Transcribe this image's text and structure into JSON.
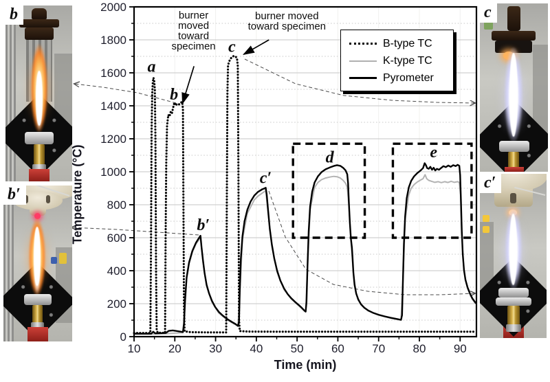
{
  "figure": {
    "photos": [
      {
        "id": "b",
        "label": "b",
        "flame": "orange",
        "specimen_holder": false,
        "position": "top-left"
      },
      {
        "id": "b-prime",
        "label": "b′",
        "flame": "orange",
        "specimen_holder": true,
        "position": "bottom-left"
      },
      {
        "id": "c",
        "label": "c",
        "flame": "white",
        "specimen_holder": false,
        "position": "top-right"
      },
      {
        "id": "c-prime",
        "label": "c′",
        "flame": "white",
        "specimen_holder": true,
        "position": "bottom-right"
      }
    ]
  },
  "chart_data": {
    "type": "line",
    "title": "",
    "xlabel": "Time (min)",
    "ylabel": "Temperature (°C)",
    "xlim": [
      10,
      94
    ],
    "ylim": [
      0,
      2000
    ],
    "x_ticks": [
      10,
      20,
      30,
      40,
      50,
      60,
      70,
      80,
      90
    ],
    "y_ticks": [
      0,
      200,
      400,
      600,
      800,
      1000,
      1200,
      1400,
      1600,
      1800,
      2000
    ],
    "grid": {
      "major_solid": true,
      "minor_dotted": true
    },
    "legend": {
      "position": "upper-right",
      "entries": [
        {
          "label": "B-type TC",
          "line_style": "dotted",
          "color": "#000000"
        },
        {
          "label": "K-type TC",
          "line_style": "solid",
          "color": "#b0b0b0"
        },
        {
          "label": "Pyrometer",
          "line_style": "solid",
          "color": "#000000"
        }
      ]
    },
    "series": [
      {
        "name": "K-type TC",
        "style": "solid",
        "color": "#b3b3b3",
        "points": [
          [
            10,
            16
          ],
          [
            14.2,
            16
          ],
          [
            17.8,
            18
          ],
          [
            22.0,
            24
          ],
          [
            22.3,
            75
          ],
          [
            22.9,
            350
          ],
          [
            23.5,
            440
          ],
          [
            24.3,
            512
          ],
          [
            25.2,
            562
          ],
          [
            26.3,
            600
          ],
          [
            26.9,
            452
          ],
          [
            27.8,
            305
          ],
          [
            29.1,
            210
          ],
          [
            30.8,
            143
          ],
          [
            32.8,
            102
          ],
          [
            34.8,
            74
          ],
          [
            35.5,
            62
          ],
          [
            35.95,
            265
          ],
          [
            36.6,
            590
          ],
          [
            37.8,
            748
          ],
          [
            39.5,
            830
          ],
          [
            40.4,
            852
          ],
          [
            41.4,
            870
          ],
          [
            42.3,
            885
          ],
          [
            42.9,
            745
          ],
          [
            43.8,
            548
          ],
          [
            45.1,
            390
          ],
          [
            46.8,
            285
          ],
          [
            48.6,
            228
          ],
          [
            50.3,
            190
          ],
          [
            51.8,
            155
          ],
          [
            52.1,
            150
          ],
          [
            52.55,
            420
          ],
          [
            53.2,
            770
          ],
          [
            54.3,
            905
          ],
          [
            55.1,
            935
          ],
          [
            56.0,
            952
          ],
          [
            57.0,
            962
          ],
          [
            58.0,
            968
          ],
          [
            59.0,
            972
          ],
          [
            59.8,
            970
          ],
          [
            60.6,
            962
          ],
          [
            61.3,
            948
          ],
          [
            61.9,
            930
          ],
          [
            62.3,
            905
          ],
          [
            62.7,
            800
          ],
          [
            63.2,
            585
          ],
          [
            63.8,
            385
          ],
          [
            64.5,
            258
          ],
          [
            65.7,
            194
          ],
          [
            67.5,
            156
          ],
          [
            70,
            131
          ],
          [
            73,
            112
          ],
          [
            75.5,
            100
          ],
          [
            75.95,
            320
          ],
          [
            76.5,
            710
          ],
          [
            77.4,
            860
          ],
          [
            78.0,
            900
          ],
          [
            78.7,
            922
          ],
          [
            79.5,
            938
          ],
          [
            80.3,
            950
          ],
          [
            80.9,
            958
          ],
          [
            81.4,
            982
          ],
          [
            81.8,
            958
          ],
          [
            82.3,
            948
          ],
          [
            83.0,
            942
          ],
          [
            83.8,
            936
          ],
          [
            84.6,
            940
          ],
          [
            85.4,
            934
          ],
          [
            86.2,
            940
          ],
          [
            87.0,
            935
          ],
          [
            87.8,
            942
          ],
          [
            88.6,
            936
          ],
          [
            89.4,
            940
          ],
          [
            89.8,
            934
          ],
          [
            90.1,
            860
          ],
          [
            90.4,
            620
          ],
          [
            90.95,
            395
          ],
          [
            91.8,
            292
          ],
          [
            93.0,
            226
          ],
          [
            93.8,
            200
          ]
        ]
      },
      {
        "name": "Pyrometer",
        "style": "solid",
        "color": "#000000",
        "points": [
          [
            10,
            18
          ],
          [
            12,
            18
          ],
          [
            14.2,
            18
          ],
          [
            14.7,
            30
          ],
          [
            15.2,
            20
          ],
          [
            17.8,
            22
          ],
          [
            18.5,
            35
          ],
          [
            19.5,
            38
          ],
          [
            21.0,
            32
          ],
          [
            22.0,
            28
          ],
          [
            22.25,
            80
          ],
          [
            22.5,
            220
          ],
          [
            22.9,
            360
          ],
          [
            23.5,
            450
          ],
          [
            24.3,
            520
          ],
          [
            25.2,
            570
          ],
          [
            25.9,
            598
          ],
          [
            26.3,
            612
          ],
          [
            26.55,
            545
          ],
          [
            26.9,
            465
          ],
          [
            27.3,
            385
          ],
          [
            27.8,
            315
          ],
          [
            28.4,
            262
          ],
          [
            29.1,
            218
          ],
          [
            29.9,
            180
          ],
          [
            30.8,
            150
          ],
          [
            31.8,
            127
          ],
          [
            32.8,
            108
          ],
          [
            33.8,
            92
          ],
          [
            34.8,
            78
          ],
          [
            35.5,
            66
          ],
          [
            35.75,
            95
          ],
          [
            35.95,
            280
          ],
          [
            36.2,
            470
          ],
          [
            36.6,
            610
          ],
          [
            37.1,
            700
          ],
          [
            37.8,
            770
          ],
          [
            38.6,
            820
          ],
          [
            39.5,
            856
          ],
          [
            40.4,
            878
          ],
          [
            41.4,
            893
          ],
          [
            42.3,
            903
          ],
          [
            42.55,
            860
          ],
          [
            42.9,
            760
          ],
          [
            43.3,
            655
          ],
          [
            43.8,
            560
          ],
          [
            44.4,
            475
          ],
          [
            45.1,
            400
          ],
          [
            45.9,
            340
          ],
          [
            46.8,
            292
          ],
          [
            47.7,
            258
          ],
          [
            48.6,
            232
          ],
          [
            49.5,
            211
          ],
          [
            50.3,
            194
          ],
          [
            51.1,
            176
          ],
          [
            51.8,
            158
          ],
          [
            52.1,
            152
          ],
          [
            52.3,
            210
          ],
          [
            52.55,
            430
          ],
          [
            52.85,
            640
          ],
          [
            53.2,
            790
          ],
          [
            53.7,
            880
          ],
          [
            54.3,
            935
          ],
          [
            55.1,
            972
          ],
          [
            56.0,
            998
          ],
          [
            57.0,
            1015
          ],
          [
            58.0,
            1026
          ],
          [
            59.0,
            1035
          ],
          [
            59.8,
            1040
          ],
          [
            60.6,
            1036
          ],
          [
            61.3,
            1024
          ],
          [
            61.9,
            1008
          ],
          [
            62.3,
            985
          ],
          [
            62.5,
            930
          ],
          [
            62.7,
            820
          ],
          [
            62.95,
            690
          ],
          [
            63.2,
            595
          ],
          [
            63.45,
            540
          ],
          [
            63.6,
            480
          ],
          [
            63.8,
            390
          ],
          [
            64.1,
            315
          ],
          [
            64.5,
            262
          ],
          [
            65.0,
            225
          ],
          [
            65.7,
            196
          ],
          [
            66.5,
            175
          ],
          [
            67.5,
            158
          ],
          [
            68.6,
            145
          ],
          [
            70,
            133
          ],
          [
            71.5,
            123
          ],
          [
            73,
            114
          ],
          [
            74.5,
            107
          ],
          [
            75.5,
            102
          ],
          [
            75.75,
            130
          ],
          [
            75.95,
            330
          ],
          [
            76.2,
            560
          ],
          [
            76.5,
            730
          ],
          [
            76.9,
            840
          ],
          [
            77.4,
            905
          ],
          [
            78.0,
            945
          ],
          [
            78.7,
            972
          ],
          [
            79.5,
            992
          ],
          [
            80.3,
            1008
          ],
          [
            80.9,
            1022
          ],
          [
            81.3,
            1052
          ],
          [
            81.6,
            1040
          ],
          [
            81.9,
            1022
          ],
          [
            82.3,
            1018
          ],
          [
            82.7,
            1030
          ],
          [
            83.1,
            1012
          ],
          [
            83.5,
            1024
          ],
          [
            83.9,
            1008
          ],
          [
            84.3,
            1018
          ],
          [
            84.8,
            1012
          ],
          [
            85.3,
            1022
          ],
          [
            85.9,
            1034
          ],
          [
            86.5,
            1028
          ],
          [
            87.1,
            1038
          ],
          [
            87.7,
            1030
          ],
          [
            88.3,
            1040
          ],
          [
            88.9,
            1034
          ],
          [
            89.4,
            1042
          ],
          [
            89.8,
            1036
          ],
          [
            90.0,
            980
          ],
          [
            90.2,
            820
          ],
          [
            90.4,
            640
          ],
          [
            90.65,
            500
          ],
          [
            90.95,
            405
          ],
          [
            91.3,
            345
          ],
          [
            91.8,
            300
          ],
          [
            92.4,
            262
          ],
          [
            93.0,
            232
          ],
          [
            93.8,
            205
          ]
        ]
      },
      {
        "name": "B-type TC",
        "style": "dotted",
        "color": "#000000",
        "points": [
          [
            10,
            22
          ],
          [
            14.0,
            22
          ],
          [
            14.15,
            500
          ],
          [
            14.3,
            1250
          ],
          [
            14.45,
            1470
          ],
          [
            14.6,
            1545
          ],
          [
            14.75,
            1570
          ],
          [
            14.95,
            1550
          ],
          [
            15.1,
            1500
          ],
          [
            15.25,
            1200
          ],
          [
            15.4,
            400
          ],
          [
            15.55,
            40
          ],
          [
            15.8,
            24
          ],
          [
            17.6,
            23
          ],
          [
            17.75,
            600
          ],
          [
            17.9,
            1050
          ],
          [
            18.1,
            1280
          ],
          [
            18.4,
            1345
          ],
          [
            18.7,
            1335
          ],
          [
            19.0,
            1365
          ],
          [
            19.3,
            1355
          ],
          [
            19.6,
            1390
          ],
          [
            19.9,
            1420
          ],
          [
            20.2,
            1402
          ],
          [
            20.6,
            1412
          ],
          [
            21.0,
            1408
          ],
          [
            21.4,
            1418
          ],
          [
            21.8,
            1424
          ],
          [
            22.0,
            1380
          ],
          [
            22.1,
            900
          ],
          [
            22.25,
            200
          ],
          [
            22.4,
            32
          ],
          [
            24,
            27
          ],
          [
            28,
            26
          ],
          [
            32.6,
            26
          ],
          [
            32.75,
            800
          ],
          [
            32.9,
            1480
          ],
          [
            33.05,
            1645
          ],
          [
            33.35,
            1670
          ],
          [
            33.75,
            1688
          ],
          [
            34.15,
            1698
          ],
          [
            34.55,
            1703
          ],
          [
            34.95,
            1697
          ],
          [
            35.25,
            1690
          ],
          [
            35.45,
            1640
          ],
          [
            35.6,
            1000
          ],
          [
            35.75,
            100
          ],
          [
            35.95,
            34
          ],
          [
            38,
            31
          ],
          [
            45,
            30
          ],
          [
            55,
            30
          ],
          [
            65,
            30
          ],
          [
            75,
            30
          ],
          [
            85,
            30
          ],
          [
            93.8,
            30
          ]
        ]
      }
    ],
    "annotations": {
      "curve_labels": [
        {
          "text": "a",
          "t": 14.3,
          "T": 1640
        },
        {
          "text": "b",
          "t": 19.8,
          "T": 1470
        },
        {
          "text": "c",
          "t": 34.0,
          "T": 1760
        },
        {
          "text": "b′",
          "t": 27.0,
          "T": 680
        },
        {
          "text": "c′",
          "t": 42.3,
          "T": 965
        },
        {
          "text": "d",
          "t": 58.0,
          "T": 1090
        },
        {
          "text": "e",
          "t": 83.5,
          "T": 1120
        }
      ],
      "callouts": [
        {
          "lines": [
            "burner",
            "moved",
            "toward",
            "specimen"
          ],
          "t": 24.6,
          "T": 1930,
          "arrow_from": {
            "t": 24.7,
            "T": 1640
          },
          "arrow_to": {
            "t": 21.9,
            "T": 1415
          }
        },
        {
          "lines": [
            "burner moved",
            "toward specimen"
          ],
          "t": 47.5,
          "T": 1925,
          "arrow_from": {
            "t": 43.1,
            "T": 1800
          },
          "arrow_to": {
            "t": 36.9,
            "T": 1712
          }
        }
      ],
      "boxes": [
        {
          "label": "d",
          "t": [
            49.0,
            66.6
          ],
          "T": [
            600,
            1170
          ]
        },
        {
          "label": "e",
          "t": [
            73.5,
            92.8
          ],
          "T": [
            600,
            1170
          ]
        }
      ],
      "connectors": [
        {
          "from_label": "b",
          "to_photo": "b"
        },
        {
          "from_label": "b′",
          "to_photo": "b-prime"
        },
        {
          "from_label": "c",
          "to_photo": "c"
        },
        {
          "from_label": "c′",
          "to_photo": "c-prime"
        }
      ]
    }
  }
}
